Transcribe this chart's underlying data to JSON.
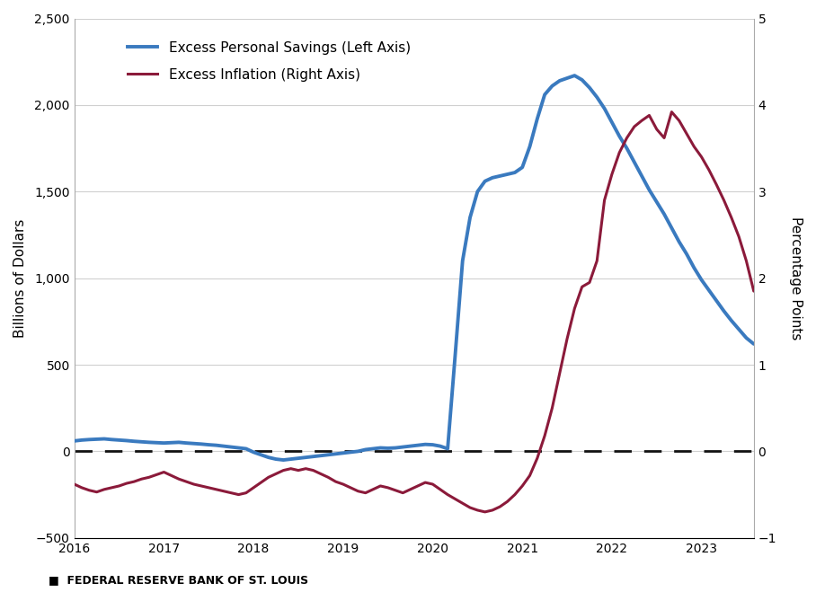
{
  "ylabel_left": "Billions of Dollars",
  "ylabel_right": "Percentage Points",
  "footer": "■  FEDERAL RESERVE BANK OF ST. LOUIS",
  "ylim_left": [
    -500,
    2500
  ],
  "ylim_right": [
    -1,
    5
  ],
  "yticks_left": [
    -500,
    0,
    500,
    1000,
    1500,
    2000,
    2500
  ],
  "yticks_right": [
    -1,
    0,
    1,
    2,
    3,
    4,
    5
  ],
  "savings_color": "#3a7abf",
  "inflation_color": "#8b1a3a",
  "savings_label": "Excess Personal Savings (Left Axis)",
  "inflation_label": "Excess Inflation (Right Axis)",
  "savings_linewidth": 2.8,
  "inflation_linewidth": 2.2,
  "savings_values": [
    60,
    65,
    68,
    70,
    72,
    68,
    65,
    62,
    58,
    55,
    52,
    50,
    48,
    50,
    52,
    48,
    45,
    42,
    38,
    35,
    30,
    25,
    20,
    15,
    -5,
    -20,
    -35,
    -45,
    -50,
    -45,
    -40,
    -35,
    -30,
    -25,
    -20,
    -15,
    -10,
    -5,
    0,
    10,
    15,
    20,
    18,
    20,
    25,
    30,
    35,
    40,
    38,
    30,
    15,
    550,
    1100,
    1350,
    1500,
    1560,
    1580,
    1590,
    1600,
    1610,
    1640,
    1760,
    1920,
    2060,
    2110,
    2140,
    2155,
    2170,
    2145,
    2100,
    2045,
    1980,
    1900,
    1820,
    1750,
    1670,
    1590,
    1510,
    1440,
    1370,
    1290,
    1210,
    1140,
    1060,
    990,
    930,
    870,
    810,
    755,
    705,
    655,
    620
  ],
  "inflation_values": [
    -0.38,
    -0.42,
    -0.45,
    -0.47,
    -0.44,
    -0.42,
    -0.4,
    -0.37,
    -0.35,
    -0.32,
    -0.3,
    -0.27,
    -0.24,
    -0.28,
    -0.32,
    -0.35,
    -0.38,
    -0.4,
    -0.42,
    -0.44,
    -0.46,
    -0.48,
    -0.5,
    -0.48,
    -0.42,
    -0.36,
    -0.3,
    -0.26,
    -0.22,
    -0.2,
    -0.22,
    -0.2,
    -0.22,
    -0.26,
    -0.3,
    -0.35,
    -0.38,
    -0.42,
    -0.46,
    -0.48,
    -0.44,
    -0.4,
    -0.42,
    -0.45,
    -0.48,
    -0.44,
    -0.4,
    -0.36,
    -0.38,
    -0.44,
    -0.5,
    -0.55,
    -0.6,
    -0.65,
    -0.68,
    -0.7,
    -0.68,
    -0.64,
    -0.58,
    -0.5,
    -0.4,
    -0.28,
    -0.08,
    0.18,
    0.5,
    0.9,
    1.3,
    1.65,
    1.9,
    1.95,
    2.2,
    2.9,
    3.2,
    3.45,
    3.62,
    3.75,
    3.82,
    3.88,
    3.72,
    3.62,
    3.92,
    3.82,
    3.67,
    3.52,
    3.4,
    3.25,
    3.08,
    2.9,
    2.7,
    2.48,
    2.2,
    1.85
  ],
  "xtick_positions": [
    0,
    12,
    24,
    36,
    48,
    60,
    72,
    84
  ],
  "xtick_labels": [
    "2016",
    "2017",
    "2018",
    "2019",
    "2020",
    "2021",
    "2022",
    "2023"
  ],
  "background_color": "#ffffff",
  "grid_color": "#d0d0d0",
  "dashed_line_color": "#111111"
}
